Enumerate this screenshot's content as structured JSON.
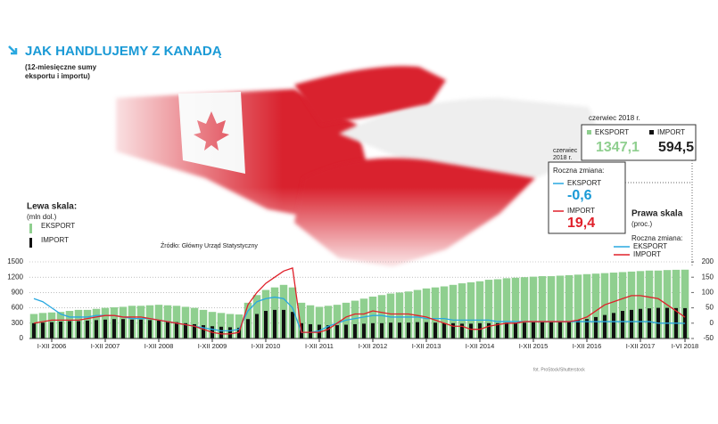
{
  "chart_data": {
    "type": "bar",
    "title": "JAK HANDLUJEMY Z KANADĄ",
    "subtitle": [
      "(12-miesięczne sumy",
      "eksportu i importu)"
    ],
    "left_axis": {
      "title": "Lewa skala:",
      "unit": "(mln dol.)"
    },
    "right_axis": {
      "title": "Prawa skala",
      "unit": "(proc.)",
      "legend_title": "Roczna zmiana:"
    },
    "source": "Źródło: Główny Urząd Statystyczny",
    "credit": "fot. ProStock/Shutterstock",
    "callout_levels": {
      "date": "czerwiec 2018 r.",
      "export_name": "EKSPORT",
      "export_value": "1347,1",
      "import_name": "IMPORT",
      "import_value": "594,5"
    },
    "callout_change": {
      "date": [
        "czerwiec",
        "2018 r."
      ],
      "title": "Roczna zmiana:",
      "export_name": "EKSPORT",
      "export_value": "-0,6",
      "import_name": "IMPORT",
      "import_value": "19,4"
    },
    "categories": [
      null,
      null,
      "I-XII 2006",
      null,
      null,
      null,
      null,
      null,
      "I-XII 2007",
      null,
      null,
      null,
      null,
      null,
      "I-XII 2008",
      null,
      null,
      null,
      null,
      null,
      "I-XII 2009",
      null,
      null,
      null,
      null,
      null,
      "I-XII 2010",
      null,
      null,
      null,
      null,
      null,
      "I-XII 2011",
      null,
      null,
      null,
      null,
      null,
      "I-XII 2012",
      null,
      null,
      null,
      null,
      null,
      "I-XII 2013",
      null,
      null,
      null,
      null,
      null,
      "I-XII 2014",
      null,
      null,
      null,
      null,
      null,
      "I-XII 2015",
      null,
      null,
      null,
      null,
      null,
      "I-XII 2016",
      null,
      null,
      null,
      null,
      null,
      "I-XII 2017",
      null,
      null,
      null,
      null,
      "I-VI 2018"
    ],
    "ylim": [
      0,
      1500
    ],
    "yticks": [
      0,
      300,
      600,
      900,
      1200,
      1500
    ],
    "y2lim": [
      -50,
      200
    ],
    "y2ticks": [
      -50,
      0,
      50,
      100,
      150,
      200
    ],
    "grid": true,
    "series": [
      {
        "name": "EKSPORT",
        "type": "bar",
        "color": "#8fcf8f",
        "values": [
          480,
          500,
          510,
          520,
          540,
          560,
          560,
          580,
          600,
          610,
          620,
          640,
          640,
          650,
          660,
          650,
          640,
          620,
          600,
          560,
          520,
          500,
          480,
          470,
          700,
          850,
          950,
          1000,
          1050,
          1000,
          700,
          650,
          620,
          640,
          660,
          700,
          740,
          780,
          820,
          850,
          880,
          900,
          920,
          950,
          980,
          1000,
          1020,
          1050,
          1080,
          1100,
          1120,
          1150,
          1160,
          1180,
          1190,
          1200,
          1210,
          1220,
          1220,
          1230,
          1240,
          1250,
          1260,
          1270,
          1280,
          1290,
          1300,
          1310,
          1320,
          1330,
          1330,
          1340,
          1345,
          1347.1
        ]
      },
      {
        "name": "IMPORT",
        "type": "bar",
        "color": "#111111",
        "values": [
          300,
          310,
          320,
          330,
          340,
          340,
          350,
          360,
          370,
          380,
          380,
          370,
          370,
          360,
          350,
          340,
          320,
          300,
          280,
          260,
          240,
          230,
          220,
          210,
          380,
          480,
          540,
          560,
          560,
          520,
          300,
          280,
          270,
          260,
          260,
          270,
          280,
          290,
          300,
          300,
          310,
          310,
          310,
          320,
          320,
          310,
          300,
          300,
          290,
          290,
          300,
          300,
          300,
          310,
          310,
          310,
          320,
          320,
          320,
          330,
          340,
          360,
          380,
          420,
          460,
          500,
          540,
          560,
          580,
          590,
          600,
          600,
          596,
          594.5
        ]
      },
      {
        "name": "EKSPORT",
        "type": "line",
        "axis": "y2",
        "color": "#29a8e0",
        "values": [
          80,
          70,
          50,
          30,
          20,
          20,
          20,
          25,
          25,
          25,
          20,
          15,
          15,
          15,
          10,
          5,
          0,
          -5,
          -10,
          -15,
          -20,
          -25,
          -25,
          -20,
          40,
          70,
          80,
          85,
          80,
          50,
          -30,
          -30,
          -25,
          -10,
          0,
          10,
          15,
          20,
          25,
          25,
          20,
          20,
          20,
          20,
          15,
          15,
          15,
          10,
          10,
          10,
          10,
          10,
          5,
          5,
          5,
          5,
          5,
          5,
          5,
          5,
          5,
          5,
          5,
          5,
          5,
          5,
          5,
          5,
          5,
          5,
          0,
          0,
          0,
          -0.6
        ]
      },
      {
        "name": "IMPORT",
        "type": "line",
        "axis": "y2",
        "color": "#e0202a",
        "values": [
          0,
          5,
          10,
          10,
          10,
          10,
          15,
          20,
          25,
          25,
          20,
          20,
          20,
          15,
          10,
          5,
          0,
          -5,
          -10,
          -20,
          -30,
          -35,
          -35,
          -30,
          60,
          100,
          130,
          150,
          170,
          180,
          -30,
          -30,
          -30,
          -20,
          0,
          20,
          30,
          30,
          40,
          35,
          30,
          30,
          30,
          25,
          20,
          10,
          0,
          -10,
          -10,
          -20,
          -20,
          -10,
          -5,
          0,
          0,
          5,
          5,
          5,
          5,
          5,
          5,
          10,
          20,
          40,
          60,
          70,
          80,
          90,
          90,
          85,
          80,
          60,
          40,
          19.4
        ]
      }
    ]
  }
}
